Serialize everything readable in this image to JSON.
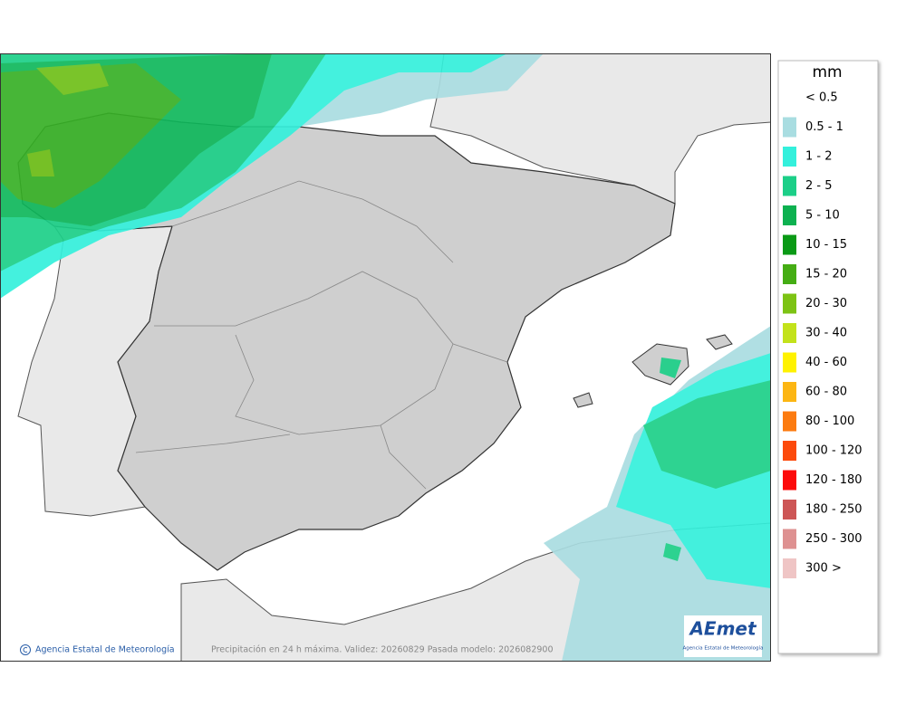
{
  "legend": {
    "title": "mm",
    "items": [
      {
        "label": "< 0.5"
      },
      {
        "label": "0.5 - 1",
        "color": "#a9dde1"
      },
      {
        "label": "1 - 2",
        "color": "#34f0dc"
      },
      {
        "label": "2 - 5",
        "color": "#1ccf88"
      },
      {
        "label": "5 - 10",
        "color": "#0db150"
      },
      {
        "label": "10 - 15",
        "color": "#0a9a16"
      },
      {
        "label": "15 - 20",
        "color": "#45ad14"
      },
      {
        "label": "20 - 30",
        "color": "#7dc314"
      },
      {
        "label": "30 - 40",
        "color": "#c3e21b"
      },
      {
        "label": "40 - 60",
        "color": "#fff200"
      },
      {
        "label": "60 - 80",
        "color": "#fcb613"
      },
      {
        "label": "80 - 100",
        "color": "#fc7b10"
      },
      {
        "label": "100 - 120",
        "color": "#fc4a0c"
      },
      {
        "label": "120 - 180",
        "color": "#fc0b0b"
      },
      {
        "label": "180 - 250",
        "color": "#cd5656"
      },
      {
        "label": "250 - 300",
        "color": "#de9191"
      },
      {
        "label": "300 >",
        "color": "#efc5c5"
      }
    ]
  },
  "footer": {
    "credit": "Agencia Estatal de Meteorología",
    "caption": "Precipitación en 24 h máxima. Validez: 20260829 Pasada modelo: 2026082900"
  },
  "logo": {
    "name": "AEmet",
    "subtitle": "Agencia Estatal de Meteorología"
  }
}
